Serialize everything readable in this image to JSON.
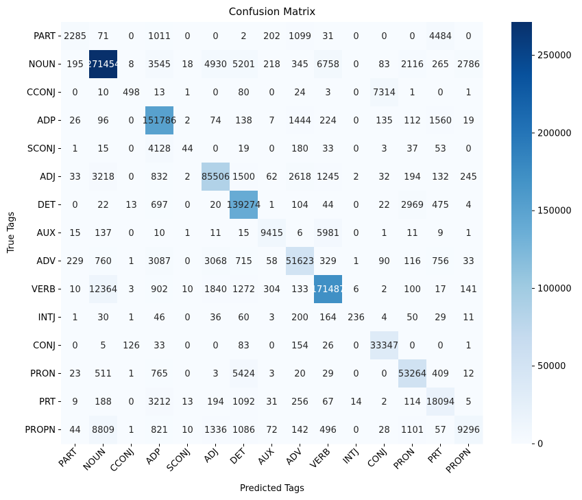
{
  "chart_data": {
    "type": "heatmap",
    "title": "Confusion Matrix",
    "xlabel": "Predicted Tags",
    "ylabel": "True Tags",
    "x_categories": [
      "PART",
      "NOUN",
      "CCONJ",
      "ADP",
      "SCONJ",
      "ADJ",
      "DET",
      "AUX",
      "ADV",
      "VERB",
      "INTJ",
      "CONJ",
      "PRON",
      "PRT",
      "PROPN"
    ],
    "y_categories": [
      "PART",
      "NOUN",
      "CCONJ",
      "ADP",
      "SCONJ",
      "ADJ",
      "DET",
      "AUX",
      "ADV",
      "VERB",
      "INTJ",
      "CONJ",
      "PRON",
      "PRT",
      "PROPN"
    ],
    "matrix": [
      [
        2285,
        71,
        0,
        1011,
        0,
        0,
        2,
        202,
        1099,
        31,
        0,
        0,
        0,
        4484,
        0
      ],
      [
        195,
        271454,
        8,
        3545,
        18,
        4930,
        5201,
        218,
        345,
        6758,
        0,
        83,
        2116,
        265,
        2786
      ],
      [
        0,
        10,
        498,
        13,
        1,
        0,
        80,
        0,
        24,
        3,
        0,
        7314,
        1,
        0,
        1
      ],
      [
        26,
        96,
        0,
        151786,
        2,
        74,
        138,
        7,
        1444,
        224,
        0,
        135,
        112,
        1560,
        19
      ],
      [
        1,
        15,
        0,
        4128,
        44,
        0,
        19,
        0,
        180,
        33,
        0,
        3,
        37,
        53,
        0
      ],
      [
        33,
        3218,
        0,
        832,
        2,
        85506,
        1500,
        62,
        2618,
        1245,
        2,
        32,
        194,
        132,
        245
      ],
      [
        0,
        22,
        13,
        697,
        0,
        20,
        139274,
        1,
        104,
        44,
        0,
        22,
        2969,
        475,
        4
      ],
      [
        15,
        137,
        0,
        10,
        1,
        11,
        15,
        9415,
        6,
        5981,
        0,
        1,
        11,
        9,
        1
      ],
      [
        229,
        760,
        1,
        3087,
        0,
        3068,
        715,
        58,
        51623,
        329,
        1,
        90,
        116,
        756,
        33
      ],
      [
        10,
        12364,
        3,
        902,
        10,
        1840,
        1272,
        304,
        133,
        171487,
        6,
        2,
        100,
        17,
        141
      ],
      [
        1,
        30,
        1,
        46,
        0,
        36,
        60,
        3,
        200,
        164,
        236,
        4,
        50,
        29,
        11
      ],
      [
        0,
        5,
        126,
        33,
        0,
        0,
        83,
        0,
        154,
        26,
        0,
        33347,
        0,
        0,
        1
      ],
      [
        23,
        511,
        1,
        765,
        0,
        3,
        5424,
        3,
        20,
        29,
        0,
        0,
        53264,
        409,
        12
      ],
      [
        9,
        188,
        0,
        3212,
        13,
        194,
        1092,
        31,
        256,
        67,
        14,
        2,
        114,
        18094,
        5
      ],
      [
        44,
        8809,
        1,
        821,
        10,
        1336,
        1086,
        72,
        142,
        496,
        0,
        28,
        1101,
        57,
        9296
      ]
    ],
    "color_range": [
      0,
      271454
    ],
    "colorbar_ticks": [
      0,
      50000,
      100000,
      150000,
      200000,
      250000
    ],
    "colormap": "Blues",
    "colormap_stops": [
      "#f7fbff",
      "#deebf7",
      "#c6dbef",
      "#9ecae1",
      "#6baed6",
      "#4292c6",
      "#2171b5",
      "#08519c",
      "#08306b"
    ],
    "grid": false,
    "legend": "colorbar-right"
  }
}
